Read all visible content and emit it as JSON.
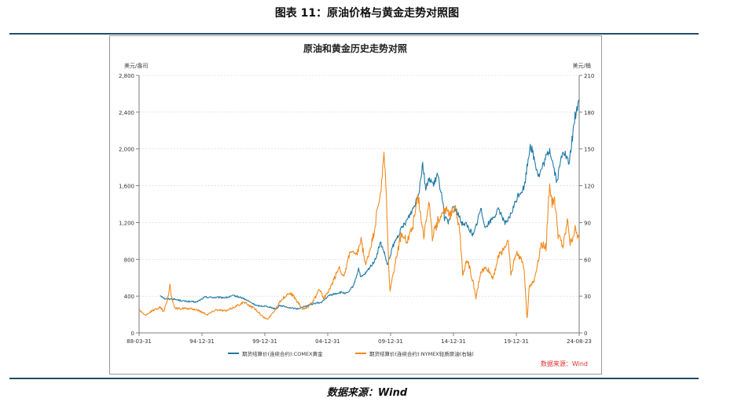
{
  "figure": {
    "caption": "图表 11：原油价格与黄金走势对照图",
    "source": "数据来源：Wind"
  },
  "chart_data": {
    "type": "line",
    "title": "原油和黄金历史走势对照",
    "source_note": "数据来源：Wind",
    "x_tick_labels": [
      "88-03-31",
      "94-12-31",
      "99-12-31",
      "04-12-31",
      "09-12-31",
      "14-12-31",
      "19-12-31",
      "24-08-23"
    ],
    "x_range": [
      1988.25,
      2024.64
    ],
    "left_axis": {
      "unit_label": "美元/盎司",
      "range": [
        0,
        2800
      ],
      "ticks": [
        "0",
        "400",
        "800",
        "1,200",
        "1,600",
        "2,000",
        "2,400",
        "2,800"
      ]
    },
    "right_axis": {
      "unit_label": "美元/桶",
      "range": [
        0,
        210
      ],
      "ticks": [
        "0",
        "30",
        "60",
        "90",
        "120",
        "150",
        "180",
        "210"
      ]
    },
    "grid": true,
    "legend_position": "bottom",
    "series": [
      {
        "name": "期货结算价(连续合约):COMEX黄金",
        "axis": "left",
        "color": "#2179a6",
        "points": [
          [
            1990.0,
            410
          ],
          [
            1990.4,
            370
          ],
          [
            1991.0,
            370
          ],
          [
            1992.0,
            345
          ],
          [
            1993.0,
            335
          ],
          [
            1993.7,
            390
          ],
          [
            1994.5,
            385
          ],
          [
            1995.5,
            385
          ],
          [
            1996.1,
            405
          ],
          [
            1996.8,
            380
          ],
          [
            1997.5,
            330
          ],
          [
            1998.0,
            295
          ],
          [
            1998.8,
            290
          ],
          [
            1999.6,
            260
          ],
          [
            1999.85,
            300
          ],
          [
            2000.5,
            280
          ],
          [
            2001.3,
            260
          ],
          [
            2002.0,
            290
          ],
          [
            2002.7,
            320
          ],
          [
            2003.3,
            330
          ],
          [
            2004.0,
            410
          ],
          [
            2004.9,
            440
          ],
          [
            2005.5,
            430
          ],
          [
            2006.0,
            520
          ],
          [
            2006.4,
            700
          ],
          [
            2006.6,
            600
          ],
          [
            2007.0,
            650
          ],
          [
            2007.8,
            800
          ],
          [
            2008.2,
            980
          ],
          [
            2008.5,
            880
          ],
          [
            2008.8,
            730
          ],
          [
            2009.2,
            930
          ],
          [
            2009.9,
            1120
          ],
          [
            2010.5,
            1250
          ],
          [
            2011.0,
            1380
          ],
          [
            2011.4,
            1550
          ],
          [
            2011.7,
            1850
          ],
          [
            2011.95,
            1570
          ],
          [
            2012.3,
            1680
          ],
          [
            2012.6,
            1600
          ],
          [
            2012.9,
            1720
          ],
          [
            2013.3,
            1500
          ],
          [
            2013.5,
            1250
          ],
          [
            2013.9,
            1200
          ],
          [
            2014.2,
            1380
          ],
          [
            2014.6,
            1300
          ],
          [
            2014.9,
            1200
          ],
          [
            2015.3,
            1180
          ],
          [
            2015.9,
            1060
          ],
          [
            2016.5,
            1350
          ],
          [
            2016.9,
            1150
          ],
          [
            2017.5,
            1250
          ],
          [
            2018.0,
            1340
          ],
          [
            2018.6,
            1180
          ],
          [
            2019.0,
            1290
          ],
          [
            2019.6,
            1500
          ],
          [
            2020.1,
            1580
          ],
          [
            2020.6,
            2060
          ],
          [
            2021.0,
            1850
          ],
          [
            2021.3,
            1700
          ],
          [
            2022.2,
            2000
          ],
          [
            2022.8,
            1640
          ],
          [
            2023.3,
            2000
          ],
          [
            2023.8,
            1830
          ],
          [
            2024.0,
            2050
          ],
          [
            2024.3,
            2350
          ],
          [
            2024.64,
            2530
          ]
        ]
      },
      {
        "name": "期货结算价(连续合约):NYMEX轻质原油(右轴)",
        "axis": "right",
        "color": "#f28a1d",
        "points": [
          [
            1988.25,
            19
          ],
          [
            1988.8,
            14
          ],
          [
            1989.3,
            18
          ],
          [
            1990.0,
            21
          ],
          [
            1990.3,
            17
          ],
          [
            1990.7,
            32
          ],
          [
            1990.8,
            40
          ],
          [
            1990.9,
            31
          ],
          [
            1991.2,
            20
          ],
          [
            1992.0,
            20
          ],
          [
            1993.0,
            19
          ],
          [
            1993.9,
            15
          ],
          [
            1994.6,
            19
          ],
          [
            1995.5,
            18
          ],
          [
            1996.5,
            23
          ],
          [
            1996.9,
            25
          ],
          [
            1997.8,
            20
          ],
          [
            1998.5,
            13
          ],
          [
            1998.9,
            11
          ],
          [
            1999.5,
            19
          ],
          [
            1999.9,
            26
          ],
          [
            2000.7,
            33
          ],
          [
            2001.0,
            30
          ],
          [
            2001.8,
            19
          ],
          [
            2002.2,
            21
          ],
          [
            2002.9,
            30
          ],
          [
            2003.2,
            36
          ],
          [
            2003.5,
            28
          ],
          [
            2004.0,
            35
          ],
          [
            2004.8,
            54
          ],
          [
            2005.2,
            45
          ],
          [
            2005.7,
            67
          ],
          [
            2006.2,
            62
          ],
          [
            2006.6,
            75
          ],
          [
            2007.0,
            55
          ],
          [
            2007.6,
            78
          ],
          [
            2007.9,
            96
          ],
          [
            2008.3,
            120
          ],
          [
            2008.5,
            145
          ],
          [
            2008.7,
            110
          ],
          [
            2008.9,
            50
          ],
          [
            2009.0,
            35
          ],
          [
            2009.4,
            55
          ],
          [
            2009.9,
            80
          ],
          [
            2010.4,
            75
          ],
          [
            2010.9,
            88
          ],
          [
            2011.3,
            112
          ],
          [
            2011.8,
            80
          ],
          [
            2012.2,
            108
          ],
          [
            2012.5,
            78
          ],
          [
            2012.9,
            90
          ],
          [
            2013.5,
            102
          ],
          [
            2013.9,
            95
          ],
          [
            2014.4,
            105
          ],
          [
            2014.8,
            80
          ],
          [
            2015.0,
            48
          ],
          [
            2015.4,
            60
          ],
          [
            2015.9,
            40
          ],
          [
            2016.1,
            28
          ],
          [
            2016.5,
            50
          ],
          [
            2017.0,
            53
          ],
          [
            2017.5,
            45
          ],
          [
            2018.0,
            63
          ],
          [
            2018.8,
            75
          ],
          [
            2019.0,
            46
          ],
          [
            2019.4,
            65
          ],
          [
            2019.9,
            60
          ],
          [
            2020.1,
            52
          ],
          [
            2020.3,
            15
          ],
          [
            2020.35,
            12
          ],
          [
            2020.5,
            38
          ],
          [
            2020.9,
            42
          ],
          [
            2021.5,
            72
          ],
          [
            2021.9,
            70
          ],
          [
            2022.2,
            123
          ],
          [
            2022.4,
            105
          ],
          [
            2022.6,
            110
          ],
          [
            2022.9,
            80
          ],
          [
            2023.3,
            70
          ],
          [
            2023.7,
            92
          ],
          [
            2023.9,
            72
          ],
          [
            2024.3,
            84
          ],
          [
            2024.64,
            76
          ]
        ]
      }
    ]
  }
}
